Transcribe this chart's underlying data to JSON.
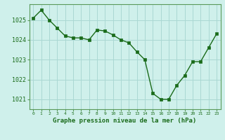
{
  "x": [
    0,
    1,
    2,
    3,
    4,
    5,
    6,
    7,
    8,
    9,
    10,
    11,
    12,
    13,
    14,
    15,
    16,
    17,
    18,
    19,
    20,
    21,
    22,
    23
  ],
  "y": [
    1025.1,
    1025.5,
    1025.0,
    1024.6,
    1024.2,
    1024.1,
    1024.1,
    1024.0,
    1024.5,
    1024.45,
    1024.25,
    1024.0,
    1023.85,
    1023.4,
    1023.0,
    1021.3,
    1021.0,
    1021.0,
    1021.7,
    1022.2,
    1022.9,
    1022.9,
    1023.6,
    1024.3
  ],
  "line_color": "#1a6b1a",
  "marker_color": "#1a6b1a",
  "bg_color": "#cff0eb",
  "grid_color": "#aad8d3",
  "xlabel": "Graphe pression niveau de la mer (hPa)",
  "xlabel_color": "#1a6b1a",
  "axis_label_color": "#5a9a5a",
  "tick_label_color": "#1a6b1a",
  "ylim_min": 1020.5,
  "ylim_max": 1025.8,
  "ytick_values": [
    1021,
    1022,
    1023,
    1024,
    1025
  ],
  "xtick_values": [
    0,
    1,
    2,
    3,
    4,
    5,
    6,
    7,
    8,
    9,
    10,
    11,
    12,
    13,
    14,
    15,
    16,
    17,
    18,
    19,
    20,
    21,
    22,
    23
  ]
}
